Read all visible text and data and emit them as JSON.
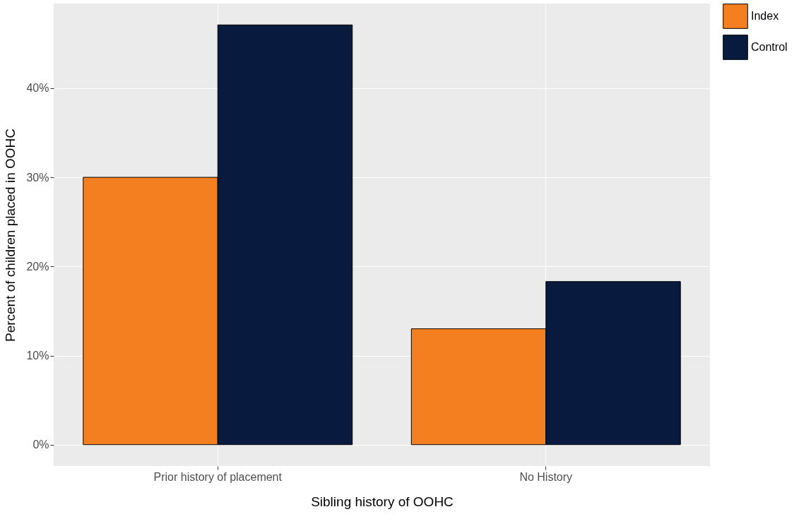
{
  "chart_data": {
    "type": "bar",
    "xlabel": "Sibling history of OOHC",
    "ylabel": "Percent of children placed in OOHC",
    "categories": [
      "Prior history of placement",
      "No History"
    ],
    "series": [
      {
        "name": "Index",
        "color": "#f47f20",
        "values": [
          30.0,
          13.0
        ]
      },
      {
        "name": "Control",
        "color": "#081b3e",
        "values": [
          47.1,
          18.3
        ]
      }
    ],
    "ylim": [
      -2.4,
      49.5
    ],
    "yticks": [
      {
        "value": 0,
        "label": "0%"
      },
      {
        "value": 10,
        "label": "10%"
      },
      {
        "value": 20,
        "label": "20%"
      },
      {
        "value": 30,
        "label": "30%"
      },
      {
        "value": 40,
        "label": "40%"
      }
    ],
    "grid": true,
    "legend": "right"
  }
}
